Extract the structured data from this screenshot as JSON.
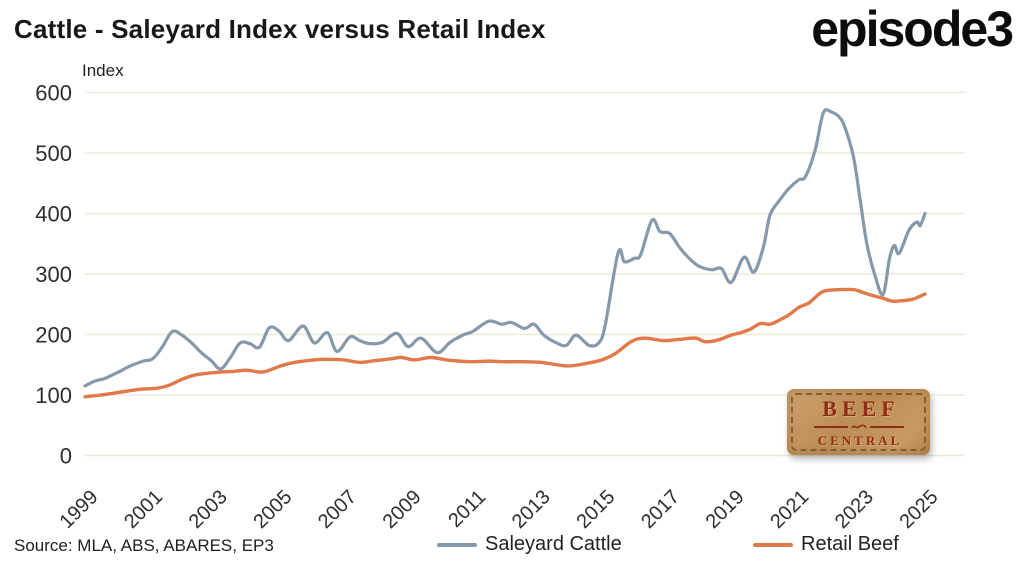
{
  "header": {
    "title": "Cattle - Saleyard Index versus Retail Index",
    "logo_text": "episode3"
  },
  "footer": {
    "source": "Source: MLA, ABS, ABARES, EP3"
  },
  "legend": {
    "items": [
      {
        "label": "Saleyard Cattle",
        "color": "#8599aa"
      },
      {
        "label": "Retail Beef",
        "color": "#e1794a"
      }
    ]
  },
  "badge": {
    "line1": "BEEF",
    "line2": "CENTRAL",
    "background": "#c3915c",
    "text_color": "#8e2c15"
  },
  "colors": {
    "gridline": "#eee9d8",
    "tick_text": "#2e2e2e",
    "title_text": "#17181a",
    "saleyard_line": "#8599aa",
    "retail_line": "#e1794a"
  },
  "chart_data": {
    "type": "line",
    "title": "Cattle - Saleyard Index versus Retail Index",
    "xlabel": "",
    "ylabel": "Index",
    "ylim": [
      0,
      600
    ],
    "yticks": [
      0,
      100,
      200,
      300,
      400,
      500,
      600
    ],
    "xlim": [
      1999,
      2025
    ],
    "xticks": [
      1999,
      2001,
      2003,
      2005,
      2007,
      2009,
      2011,
      2013,
      2015,
      2017,
      2019,
      2021,
      2023,
      2025
    ],
    "grid": "horizontal-only",
    "legend_position": "bottom",
    "series": [
      {
        "name": "Saleyard Cattle",
        "color": "#8599aa",
        "points": [
          [
            1999,
            115
          ],
          [
            1999.3,
            123
          ],
          [
            1999.6,
            127
          ],
          [
            2000,
            137
          ],
          [
            2000.4,
            148
          ],
          [
            2000.8,
            156
          ],
          [
            2001.1,
            160
          ],
          [
            2001.4,
            180
          ],
          [
            2001.7,
            205
          ],
          [
            2002,
            199
          ],
          [
            2002.3,
            186
          ],
          [
            2002.6,
            170
          ],
          [
            2002.9,
            157
          ],
          [
            2003.2,
            143
          ],
          [
            2003.5,
            162
          ],
          [
            2003.8,
            186
          ],
          [
            2004.1,
            185
          ],
          [
            2004.4,
            179
          ],
          [
            2004.7,
            211
          ],
          [
            2005,
            206
          ],
          [
            2005.3,
            190
          ],
          [
            2005.75,
            214
          ],
          [
            2006.1,
            186
          ],
          [
            2006.5,
            203
          ],
          [
            2006.8,
            172
          ],
          [
            2007.2,
            196
          ],
          [
            2007.5,
            190
          ],
          [
            2007.8,
            185
          ],
          [
            2008.2,
            187
          ],
          [
            2008.65,
            202
          ],
          [
            2009,
            180
          ],
          [
            2009.4,
            194
          ],
          [
            2009.9,
            170
          ],
          [
            2010.3,
            187
          ],
          [
            2010.7,
            199
          ],
          [
            2011,
            205
          ],
          [
            2011.5,
            222
          ],
          [
            2011.9,
            217
          ],
          [
            2012.2,
            220
          ],
          [
            2012.6,
            210
          ],
          [
            2012.9,
            217
          ],
          [
            2013.2,
            199
          ],
          [
            2013.6,
            186
          ],
          [
            2013.9,
            182
          ],
          [
            2014.2,
            199
          ],
          [
            2014.6,
            182
          ],
          [
            2014.9,
            186
          ],
          [
            2015.1,
            215
          ],
          [
            2015.5,
            335
          ],
          [
            2015.7,
            320
          ],
          [
            2016,
            326
          ],
          [
            2016.2,
            332
          ],
          [
            2016.55,
            389
          ],
          [
            2016.8,
            370
          ],
          [
            2017.1,
            367
          ],
          [
            2017.4,
            344
          ],
          [
            2017.7,
            326
          ],
          [
            2018,
            313
          ],
          [
            2018.4,
            307
          ],
          [
            2018.7,
            309
          ],
          [
            2019,
            286
          ],
          [
            2019.4,
            328
          ],
          [
            2019.7,
            303
          ],
          [
            2020,
            345
          ],
          [
            2020.2,
            397
          ],
          [
            2020.5,
            422
          ],
          [
            2020.8,
            442
          ],
          [
            2021.1,
            456
          ],
          [
            2021.3,
            461
          ],
          [
            2021.6,
            505
          ],
          [
            2021.85,
            566
          ],
          [
            2022.1,
            568
          ],
          [
            2022.4,
            556
          ],
          [
            2022.6,
            530
          ],
          [
            2022.8,
            490
          ],
          [
            2023,
            420
          ],
          [
            2023.2,
            350
          ],
          [
            2023.45,
            298
          ],
          [
            2023.7,
            266
          ],
          [
            2023.9,
            325
          ],
          [
            2024.05,
            347
          ],
          [
            2024.2,
            334
          ],
          [
            2024.5,
            372
          ],
          [
            2024.75,
            386
          ],
          [
            2024.85,
            380
          ],
          [
            2025,
            400
          ]
        ]
      },
      {
        "name": "Retail Beef",
        "color": "#e1794a",
        "points": [
          [
            1999,
            97
          ],
          [
            1999.5,
            100
          ],
          [
            2000,
            104
          ],
          [
            2000.5,
            108
          ],
          [
            2000.8,
            110
          ],
          [
            2001.2,
            111
          ],
          [
            2001.6,
            116
          ],
          [
            2002,
            126
          ],
          [
            2002.4,
            133
          ],
          [
            2002.8,
            136
          ],
          [
            2003.2,
            138
          ],
          [
            2003.6,
            139
          ],
          [
            2004,
            141
          ],
          [
            2004.5,
            138
          ],
          [
            2005,
            147
          ],
          [
            2005.4,
            153
          ],
          [
            2005.9,
            157
          ],
          [
            2006.4,
            159
          ],
          [
            2007,
            158
          ],
          [
            2007.5,
            154
          ],
          [
            2008,
            157
          ],
          [
            2008.5,
            160
          ],
          [
            2008.8,
            162
          ],
          [
            2009.2,
            158
          ],
          [
            2009.7,
            162
          ],
          [
            2010.2,
            158
          ],
          [
            2010.6,
            156
          ],
          [
            2011,
            155
          ],
          [
            2011.5,
            156
          ],
          [
            2012,
            155
          ],
          [
            2012.6,
            155
          ],
          [
            2013.1,
            154
          ],
          [
            2013.6,
            150
          ],
          [
            2014,
            148
          ],
          [
            2014.5,
            152
          ],
          [
            2015,
            158
          ],
          [
            2015.4,
            168
          ],
          [
            2015.9,
            188
          ],
          [
            2016.3,
            194
          ],
          [
            2016.9,
            190
          ],
          [
            2017.4,
            192
          ],
          [
            2017.9,
            194
          ],
          [
            2018.2,
            188
          ],
          [
            2018.6,
            191
          ],
          [
            2019,
            199
          ],
          [
            2019.3,
            203
          ],
          [
            2019.6,
            209
          ],
          [
            2019.9,
            218
          ],
          [
            2020.2,
            217
          ],
          [
            2020.5,
            224
          ],
          [
            2020.8,
            233
          ],
          [
            2021.1,
            245
          ],
          [
            2021.4,
            252
          ],
          [
            2021.7,
            266
          ],
          [
            2021.9,
            272
          ],
          [
            2022.3,
            274
          ],
          [
            2022.8,
            274
          ],
          [
            2023.1,
            269
          ],
          [
            2023.4,
            264
          ],
          [
            2023.7,
            260
          ],
          [
            2024,
            255
          ],
          [
            2024.3,
            256
          ],
          [
            2024.6,
            258
          ],
          [
            2024.8,
            262
          ],
          [
            2025,
            267
          ]
        ]
      }
    ]
  }
}
